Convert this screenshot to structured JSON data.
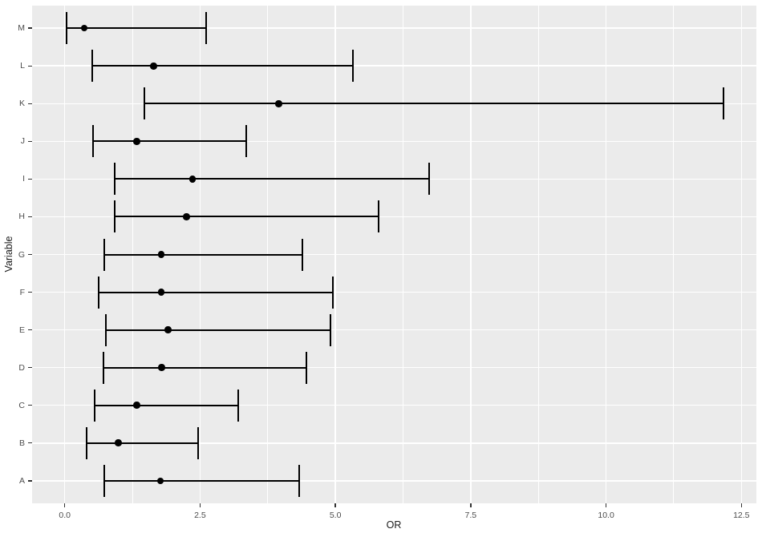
{
  "colors": {
    "figure_background": "#FFFFFF",
    "panel_background": "#EBEBEB",
    "grid": "#FFFFFF",
    "data": "#000000",
    "tick_marks": "#333333",
    "axis_text": "#4D4D4D",
    "axis_title": "#1A1A1A"
  },
  "chart_data": {
    "type": "errorbar",
    "subtype": "forest-plot",
    "orientation": "horizontal",
    "title": "",
    "xlabel": "OR",
    "ylabel": "Variable",
    "grid": true,
    "legend": "none",
    "xlim": [
      -0.603,
      12.777
    ],
    "x_ticks": [
      0.0,
      2.5,
      5.0,
      7.5,
      10.0,
      12.5
    ],
    "x_tick_labels": [
      "0.0",
      "2.5",
      "5.0",
      "7.5",
      "10.0",
      "12.5"
    ],
    "x_minor_ticks": [
      1.25,
      3.75,
      6.25,
      8.75,
      11.25
    ],
    "categories_top_to_bottom": [
      "M",
      "L",
      "K",
      "J",
      "I",
      "H",
      "G",
      "F",
      "E",
      "D",
      "C",
      "B",
      "A"
    ],
    "series": [
      {
        "variable": "A",
        "or": 1.77,
        "ci_low": 0.73,
        "ci_high": 4.33
      },
      {
        "variable": "B",
        "or": 0.99,
        "ci_low": 0.41,
        "ci_high": 2.46
      },
      {
        "variable": "C",
        "or": 1.33,
        "ci_low": 0.56,
        "ci_high": 3.21
      },
      {
        "variable": "D",
        "or": 1.79,
        "ci_low": 0.72,
        "ci_high": 4.47
      },
      {
        "variable": "E",
        "or": 1.91,
        "ci_low": 0.76,
        "ci_high": 4.91
      },
      {
        "variable": "F",
        "or": 1.78,
        "ci_low": 0.63,
        "ci_high": 4.95
      },
      {
        "variable": "G",
        "or": 1.78,
        "ci_low": 0.73,
        "ci_high": 4.39
      },
      {
        "variable": "H",
        "or": 2.25,
        "ci_low": 0.92,
        "ci_high": 5.8
      },
      {
        "variable": "I",
        "or": 2.36,
        "ci_low": 0.92,
        "ci_high": 6.73
      },
      {
        "variable": "J",
        "or": 1.33,
        "ci_low": 0.52,
        "ci_high": 3.35
      },
      {
        "variable": "K",
        "or": 3.95,
        "ci_low": 1.47,
        "ci_high": 12.17
      },
      {
        "variable": "L",
        "or": 1.64,
        "ci_low": 0.51,
        "ci_high": 5.33
      },
      {
        "variable": "M",
        "or": 0.36,
        "ci_low": 0.03,
        "ci_high": 2.61
      }
    ]
  }
}
